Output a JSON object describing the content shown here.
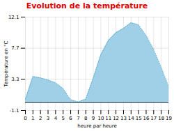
{
  "chart_data": {
    "type": "area",
    "title": "Evolution de la température",
    "xlabel": "heure par heure",
    "ylabel": "Température en °C",
    "x": [
      0,
      1,
      2,
      3,
      4,
      5,
      6,
      7,
      8,
      9,
      10,
      11,
      12,
      13,
      14,
      15,
      16,
      17,
      18,
      19
    ],
    "values": [
      0.5,
      3.7,
      3.5,
      3.2,
      2.8,
      2.0,
      0.4,
      0.1,
      0.5,
      3.5,
      6.8,
      8.8,
      9.9,
      10.5,
      11.3,
      11.0,
      9.5,
      7.5,
      5.0,
      2.2
    ],
    "xlim": [
      0,
      19
    ],
    "xticks": [
      0,
      1,
      2,
      3,
      4,
      5,
      6,
      7,
      8,
      9,
      10,
      11,
      12,
      13,
      14,
      15,
      16,
      17,
      18,
      19
    ],
    "ylim": [
      -1.1,
      12.1
    ],
    "yticks": [
      -1.1,
      3.3,
      7.7,
      12.1
    ],
    "grid": true,
    "color": "#a0d0e8",
    "line_style": "dotted"
  }
}
